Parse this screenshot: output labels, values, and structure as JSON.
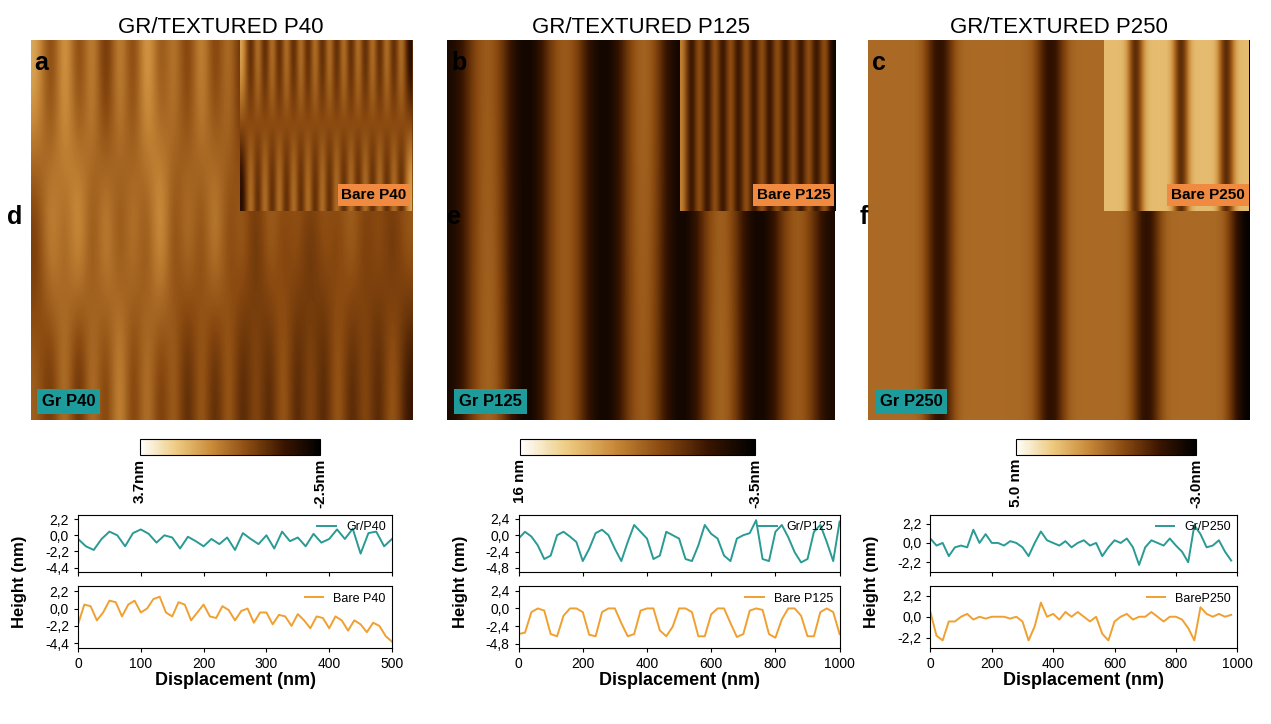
{
  "chart_data": [
    {
      "type": "heatmap",
      "panel": "a",
      "title": "GR/TEXTURED P40",
      "label": "Gr P40",
      "tick_labels": false,
      "cells": [
        [
          2,
          -1,
          2.5,
          -1,
          2,
          -1.5,
          2,
          -1,
          2.5,
          -0.5,
          1.5,
          -1,
          2,
          -1,
          1.5,
          -1.5,
          1,
          -1,
          1.5,
          -1,
          2,
          -1,
          1.5,
          -1,
          1,
          -1.5,
          1.5,
          -1
        ],
        [
          -1,
          2.5,
          -0.5,
          3,
          -1,
          2.5,
          -1,
          2,
          -1,
          3,
          -1,
          2,
          -1,
          2.5,
          -1,
          1.5,
          -1.5,
          1.5,
          -1,
          1,
          -1.5,
          1,
          -1,
          1.5,
          -1,
          1,
          -1.5,
          1
        ],
        [
          0.5,
          -1,
          1.5,
          -1.5,
          1.5,
          -1,
          2,
          -1,
          1.5,
          -1,
          1,
          -1.5,
          1,
          -1.5,
          1,
          -1.5,
          0.5,
          -1.5,
          1,
          -1.5,
          0.5,
          -1.5,
          1,
          -1.5,
          0.5,
          -1.5,
          1,
          -1.5
        ]
      ],
      "inset": {
        "label": "Bare P40",
        "cells": [
          [
            2,
            -2,
            2,
            -2,
            2,
            -2,
            2,
            -2,
            2,
            -2,
            2,
            -2,
            2,
            -2,
            2,
            -2,
            2,
            -2,
            2,
            -2,
            2,
            -2,
            2,
            -2
          ],
          [
            -2,
            2,
            -2,
            2,
            -2,
            2,
            -2,
            2,
            -2,
            2,
            -2,
            2,
            -2,
            2,
            -2,
            2,
            -2,
            2,
            -2,
            2,
            -2,
            2,
            -2,
            2
          ]
        ]
      },
      "colorbar_range": [
        -2.5,
        3.7
      ],
      "colorbar_ticks": [
        {
          "value": 3.7,
          "label": "3.7nm"
        },
        {
          "value": -2.5,
          "label": "-2.5nm"
        }
      ]
    },
    {
      "type": "heatmap",
      "panel": "b",
      "title": "GR/TEXTURED P125",
      "label": "Gr P125",
      "tick_labels": false,
      "cells": [
        [
          -2,
          5,
          6,
          -2,
          -3,
          5,
          6,
          -2,
          -3,
          5,
          7,
          -2,
          -3,
          5,
          6,
          -2,
          -3,
          5,
          6,
          -2
        ],
        [
          -2,
          5,
          7,
          -2,
          -3,
          5,
          6,
          -2,
          -3,
          5,
          6,
          -2,
          -3,
          5,
          7,
          -2,
          -3,
          5,
          6,
          -2
        ]
      ],
      "inset": {
        "label": "Bare P125",
        "cells": [
          [
            8,
            -3,
            8,
            -3,
            8,
            -3,
            8,
            -3,
            8,
            -3,
            8,
            -3,
            8,
            -3,
            8,
            -3,
            8,
            -3,
            8,
            -3
          ]
        ]
      },
      "colorbar_range": [
        -3.5,
        16
      ],
      "colorbar_ticks": [
        {
          "value": 16,
          "label": "16 nm"
        },
        {
          "value": -3.5,
          "label": "-3.5nm"
        }
      ]
    },
    {
      "type": "heatmap",
      "panel": "c",
      "title": "GR/TEXTURED P250",
      "label": "Gr P250",
      "tick_labels": false,
      "cells": [
        [
          1,
          1,
          1,
          1,
          -3,
          1,
          1,
          1,
          1,
          1,
          0.8,
          -3,
          1,
          1,
          1,
          1,
          1,
          -3,
          1,
          1,
          1,
          1,
          1,
          -3
        ]
      ],
      "inset": {
        "label": "Bare P250",
        "cells": [
          [
            3,
            3,
            3,
            -2.5,
            3,
            3,
            3,
            3,
            -2.5,
            3,
            3,
            3,
            3,
            -2.5,
            3,
            3
          ]
        ]
      },
      "colorbar_range": [
        -3.0,
        5.0
      ],
      "colorbar_ticks": [
        {
          "value": 5.0,
          "label": "5.0 nm"
        },
        {
          "value": -3.0,
          "label": "-3.0nm"
        }
      ]
    },
    {
      "type": "line",
      "panel": "d",
      "xlabel": "Displacement (nm)",
      "ylabel": "Height (nm)",
      "xlim": [
        0,
        500
      ],
      "xticks": [
        0,
        100,
        200,
        300,
        400,
        500
      ],
      "ylim": [
        -5.0,
        2.8
      ],
      "yticks": [
        {
          "value": 2.2,
          "label": "2,2"
        },
        {
          "value": 0.0,
          "label": "0,0"
        },
        {
          "value": -2.2,
          "label": "-2,2"
        },
        {
          "value": -4.4,
          "label": "-4,4"
        }
      ],
      "legend": "upper right",
      "series": [
        {
          "name": "Gr/P40",
          "color": "#2a9a94",
          "x": [
            0,
            12.5,
            25,
            37.5,
            50,
            62.5,
            75,
            87.5,
            100,
            112.5,
            125,
            137.5,
            150,
            162.5,
            175,
            187.5,
            200,
            212.5,
            225,
            237.5,
            250,
            262.5,
            275,
            287.5,
            300,
            312.5,
            325,
            337.5,
            350,
            362.5,
            375,
            387.5,
            400,
            412.5,
            425,
            437.5,
            450,
            462.5,
            475,
            487.5,
            500
          ],
          "values": [
            -0.5,
            -1.5,
            -2.0,
            -0.5,
            0.5,
            0.0,
            -1.5,
            0.3,
            0.8,
            0.2,
            -1.0,
            0.0,
            -0.3,
            -1.8,
            -0.2,
            -0.8,
            -1.5,
            -0.5,
            -1.2,
            -0.3,
            -2.0,
            0.3,
            -0.5,
            -1.2,
            0.0,
            -1.8,
            0.5,
            -0.8,
            -0.3,
            -1.5,
            0.2,
            -1.0,
            -0.5,
            0.8,
            -0.5,
            0.9,
            -2.5,
            0.3,
            0.5,
            -1.5,
            -0.5
          ]
        },
        {
          "name": "Bare P40",
          "color": "#f0a030",
          "x": [
            0,
            10,
            20,
            30,
            40,
            50,
            60,
            70,
            80,
            90,
            100,
            110,
            120,
            130,
            140,
            150,
            160,
            170,
            180,
            190,
            200,
            210,
            220,
            230,
            240,
            250,
            260,
            270,
            280,
            290,
            300,
            310,
            320,
            330,
            340,
            350,
            360,
            370,
            380,
            390,
            400,
            410,
            420,
            430,
            440,
            450,
            460,
            470,
            480,
            490,
            500
          ],
          "values": [
            -2.0,
            0.5,
            0.3,
            -1.5,
            -0.5,
            1.0,
            0.8,
            -1.0,
            0.5,
            1.0,
            -0.5,
            0.0,
            1.2,
            1.5,
            -0.5,
            -1.0,
            0.8,
            0.5,
            -1.5,
            -0.5,
            0.5,
            -1.0,
            -1.2,
            0.3,
            -0.2,
            -1.5,
            -0.3,
            0.0,
            -1.8,
            -0.5,
            -0.5,
            -2.0,
            -0.8,
            -1.0,
            -2.2,
            -0.7,
            -1.5,
            -2.5,
            -1.0,
            -1.2,
            -2.5,
            -1.0,
            -1.5,
            -2.8,
            -1.5,
            -2.0,
            -3.0,
            -1.8,
            -2.2,
            -3.5,
            -4.2
          ]
        }
      ]
    },
    {
      "type": "line",
      "panel": "e",
      "xlabel": "Displacement (nm)",
      "ylabel": "Height (nm)",
      "xlim": [
        0,
        1000
      ],
      "xticks": [
        0,
        200,
        400,
        600,
        800,
        1000
      ],
      "ylim": [
        -5.4,
        3.0
      ],
      "yticks": [
        {
          "value": 2.4,
          "label": "2,4"
        },
        {
          "value": 0.0,
          "label": "0,0"
        },
        {
          "value": -2.4,
          "label": "-2,4"
        },
        {
          "value": -4.8,
          "label": "-4,8"
        }
      ],
      "legend": "upper right",
      "series": [
        {
          "name": "Gr/P125",
          "color": "#2a9a94",
          "x": [
            0,
            20,
            40,
            60,
            80,
            100,
            120,
            140,
            160,
            180,
            200,
            220,
            240,
            260,
            280,
            300,
            320,
            340,
            360,
            380,
            400,
            420,
            440,
            460,
            480,
            500,
            520,
            540,
            560,
            580,
            600,
            620,
            640,
            660,
            680,
            700,
            720,
            740,
            760,
            780,
            800,
            820,
            840,
            860,
            880,
            900,
            920,
            940,
            960,
            980,
            1000
          ],
          "values": [
            -0.5,
            0.5,
            -0.2,
            -1.5,
            -3.5,
            -3.0,
            0.0,
            0.5,
            -0.2,
            -1.0,
            -3.8,
            -2.0,
            0.3,
            0.8,
            0.0,
            -2.0,
            -3.8,
            -1.0,
            1.5,
            0.5,
            -0.5,
            -3.5,
            -3.0,
            0.5,
            0.0,
            -0.5,
            -3.5,
            -3.8,
            -1.5,
            1.5,
            0.2,
            -0.5,
            -3.0,
            -3.8,
            -0.5,
            0.0,
            0.3,
            2.2,
            -3.5,
            -3.8,
            0.5,
            1.5,
            -0.3,
            -2.5,
            -4.0,
            -3.5,
            0.5,
            1.5,
            -1.0,
            -3.8,
            2.0
          ]
        },
        {
          "name": "Bare P125",
          "color": "#f0a030",
          "x": [
            0,
            20,
            40,
            60,
            80,
            100,
            120,
            140,
            160,
            180,
            200,
            220,
            240,
            260,
            280,
            300,
            320,
            340,
            360,
            380,
            400,
            420,
            440,
            460,
            480,
            500,
            520,
            540,
            560,
            580,
            600,
            620,
            640,
            660,
            680,
            700,
            720,
            740,
            760,
            780,
            800,
            820,
            840,
            860,
            880,
            900,
            920,
            940,
            960,
            980,
            1000
          ],
          "values": [
            -3.5,
            -3.3,
            -0.5,
            0.0,
            -0.3,
            -3.5,
            -3.8,
            -1.0,
            0.0,
            0.0,
            -0.5,
            -3.6,
            -3.8,
            -0.5,
            0.0,
            0.0,
            -2.0,
            -3.8,
            -3.5,
            -0.3,
            0.0,
            0.0,
            -3.0,
            -3.8,
            -2.5,
            0.0,
            0.0,
            -0.5,
            -3.8,
            -3.8,
            -0.8,
            0.0,
            0.0,
            -2.0,
            -3.9,
            -3.5,
            -0.3,
            0.0,
            -0.2,
            -3.5,
            -4.0,
            -1.5,
            0.0,
            0.0,
            -1.0,
            -3.8,
            -3.8,
            -0.5,
            0.0,
            -0.5,
            -3.5
          ]
        }
      ]
    },
    {
      "type": "line",
      "panel": "f",
      "xlabel": "Displacement (nm)",
      "ylabel": "Height (nm)",
      "xlim": [
        0,
        1000
      ],
      "xticks": [
        0,
        200,
        400,
        600,
        800,
        1000
      ],
      "ylim": [
        -3.3,
        3.2
      ],
      "yticks": [
        {
          "value": 2.2,
          "label": "2,2"
        },
        {
          "value": 0.0,
          "label": "0,0"
        },
        {
          "value": -2.2,
          "label": "-2,2"
        }
      ],
      "legend": "upper right",
      "series": [
        {
          "name": "Gr/P250",
          "color": "#2a9a94",
          "x": [
            0,
            20,
            40,
            60,
            80,
            100,
            120,
            140,
            160,
            180,
            200,
            220,
            240,
            260,
            280,
            300,
            320,
            340,
            360,
            380,
            400,
            420,
            440,
            460,
            480,
            500,
            520,
            540,
            560,
            580,
            600,
            620,
            640,
            660,
            680,
            700,
            720,
            740,
            760,
            780,
            800,
            820,
            840,
            860,
            880,
            900,
            920,
            940,
            960,
            980
          ],
          "values": [
            0.5,
            -0.3,
            0.0,
            -1.5,
            -0.5,
            -0.3,
            -0.5,
            1.5,
            0.0,
            1.0,
            0.0,
            0.0,
            -0.3,
            0.2,
            0.0,
            -0.5,
            -1.5,
            0.0,
            1.3,
            0.3,
            0.0,
            -0.3,
            0.2,
            -0.5,
            0.0,
            0.3,
            -0.3,
            0.0,
            -1.5,
            -0.5,
            0.3,
            0.0,
            0.5,
            -0.5,
            -2.5,
            -0.5,
            0.3,
            0.0,
            -0.3,
            0.5,
            -0.3,
            -1.0,
            -2.2,
            2.0,
            1.0,
            -0.5,
            -0.3,
            0.3,
            -1.0,
            -2.0
          ]
        },
        {
          "name": "BareP250",
          "color": "#f0a030",
          "x": [
            0,
            20,
            40,
            60,
            80,
            100,
            120,
            140,
            160,
            180,
            200,
            220,
            240,
            260,
            280,
            300,
            320,
            340,
            360,
            380,
            400,
            420,
            440,
            460,
            480,
            500,
            520,
            540,
            560,
            580,
            600,
            620,
            640,
            660,
            680,
            700,
            720,
            740,
            760,
            780,
            800,
            820,
            840,
            860,
            880,
            900,
            920,
            940,
            960,
            980
          ],
          "values": [
            0.5,
            -2.0,
            -2.5,
            -0.5,
            -0.5,
            0.0,
            0.3,
            -0.3,
            0.0,
            -0.2,
            0.0,
            0.0,
            0.0,
            -0.2,
            0.0,
            -0.5,
            -2.5,
            -1.0,
            1.5,
            0.0,
            0.3,
            -0.3,
            0.5,
            0.0,
            0.5,
            0.0,
            -0.5,
            0.0,
            -1.8,
            -2.5,
            -0.5,
            0.0,
            0.3,
            -0.3,
            0.0,
            0.0,
            0.5,
            0.0,
            -0.5,
            0.0,
            0.0,
            -0.3,
            -1.2,
            -2.5,
            1.0,
            0.3,
            0.0,
            0.3,
            0.0,
            0.2
          ]
        }
      ]
    }
  ]
}
